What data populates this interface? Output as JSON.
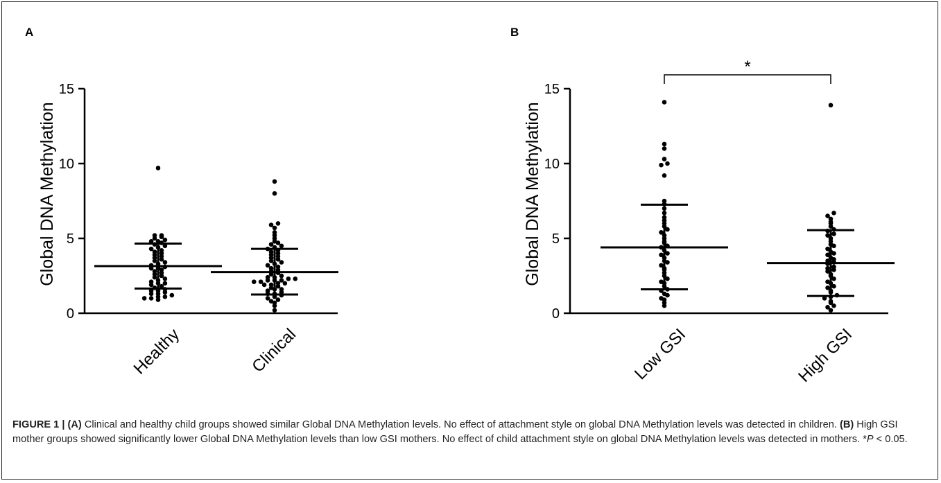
{
  "chart_data": [
    {
      "panel": "A",
      "type": "scatter",
      "ylabel": "Global DNA Methylation",
      "ylim": [
        0,
        15
      ],
      "yticks": [
        0,
        5,
        10,
        15
      ],
      "categories": [
        "Healthy",
        "Clinical"
      ],
      "groups": [
        {
          "name": "Healthy",
          "mean": 3.15,
          "sd_upper": 4.65,
          "sd_lower": 1.65,
          "points": [
            0.9,
            1.0,
            1.0,
            1.1,
            1.1,
            1.2,
            1.3,
            1.3,
            1.4,
            1.5,
            1.5,
            1.6,
            1.7,
            1.8,
            1.9,
            2.0,
            2.0,
            2.1,
            2.2,
            2.3,
            2.4,
            2.5,
            2.6,
            2.7,
            2.8,
            2.9,
            3.0,
            3.0,
            3.1,
            3.2,
            3.3,
            3.4,
            3.5,
            3.6,
            3.7,
            3.8,
            3.9,
            4.0,
            4.1,
            4.2,
            4.3,
            4.4,
            4.5,
            4.6,
            4.7,
            4.8,
            4.8,
            4.9,
            5.0,
            5.1,
            5.2,
            5.2,
            9.7
          ]
        },
        {
          "name": "Clinical",
          "mean": 2.75,
          "sd_upper": 4.3,
          "sd_lower": 1.25,
          "points": [
            0.2,
            0.5,
            0.7,
            0.8,
            0.9,
            1.0,
            1.1,
            1.2,
            1.3,
            1.3,
            1.4,
            1.5,
            1.6,
            1.6,
            1.7,
            1.8,
            1.9,
            1.9,
            2.0,
            2.0,
            2.1,
            2.1,
            2.2,
            2.2,
            2.2,
            2.3,
            2.3,
            2.4,
            2.4,
            2.5,
            2.6,
            2.7,
            2.8,
            2.9,
            3.0,
            3.1,
            3.2,
            3.3,
            3.4,
            3.5,
            3.6,
            3.7,
            3.8,
            3.9,
            4.0,
            4.1,
            4.2,
            4.3,
            4.4,
            4.5,
            4.6,
            4.7,
            4.8,
            5.0,
            5.2,
            5.4,
            5.7,
            5.9,
            6.0,
            8.0,
            8.8
          ]
        }
      ]
    },
    {
      "panel": "B",
      "type": "scatter",
      "ylabel": "Global DNA Methylation",
      "ylim": [
        0,
        15
      ],
      "yticks": [
        0,
        5,
        10,
        15
      ],
      "categories": [
        "Low GSI",
        "High GSI"
      ],
      "significance": "*",
      "groups": [
        {
          "name": "Low GSI",
          "mean": 4.4,
          "sd_upper": 7.25,
          "sd_lower": 1.6,
          "points": [
            0.5,
            0.7,
            0.9,
            1.0,
            1.2,
            1.3,
            1.5,
            1.6,
            1.8,
            2.0,
            2.1,
            2.3,
            2.5,
            2.7,
            2.9,
            3.0,
            3.2,
            3.4,
            3.5,
            3.7,
            3.9,
            4.0,
            4.2,
            4.4,
            4.5,
            4.7,
            4.8,
            5.0,
            5.2,
            5.4,
            5.6,
            5.8,
            6.0,
            6.2,
            6.4,
            6.7,
            7.0,
            7.3,
            7.5,
            9.2,
            9.9,
            10.0,
            10.3,
            11.0,
            11.3,
            14.1
          ]
        },
        {
          "name": "High GSI",
          "mean": 3.35,
          "sd_upper": 5.55,
          "sd_lower": 1.15,
          "points": [
            0.2,
            0.4,
            0.5,
            0.7,
            0.8,
            1.0,
            1.1,
            1.2,
            1.4,
            1.5,
            1.7,
            1.8,
            2.0,
            2.1,
            2.3,
            2.5,
            2.6,
            2.8,
            2.9,
            3.0,
            3.1,
            3.3,
            3.4,
            3.5,
            3.6,
            3.7,
            3.9,
            4.0,
            4.1,
            4.3,
            4.5,
            4.6,
            4.8,
            5.0,
            5.2,
            5.3,
            5.5,
            5.6,
            5.8,
            6.0,
            6.1,
            6.3,
            6.5,
            6.7,
            13.9
          ]
        }
      ]
    }
  ],
  "caption": {
    "label": "FIGURE 1 | ",
    "a_tag": "(A)",
    "a_text": " Clinical and healthy child groups showed similar Global DNA Methylation levels. No effect of attachment style on global DNA Methylation levels was detected in children. ",
    "b_tag": "(B)",
    "b_text": " High GSI mother groups showed significantly lower Global DNA Methylation levels than low GSI mothers. No effect of child attachment style on global DNA Methylation levels was detected in mothers. *",
    "p_symbol": "P",
    "p_text": " < 0.05."
  },
  "colors": {
    "marker": "#000000",
    "axis": "#000000",
    "frame": "#231f20"
  }
}
